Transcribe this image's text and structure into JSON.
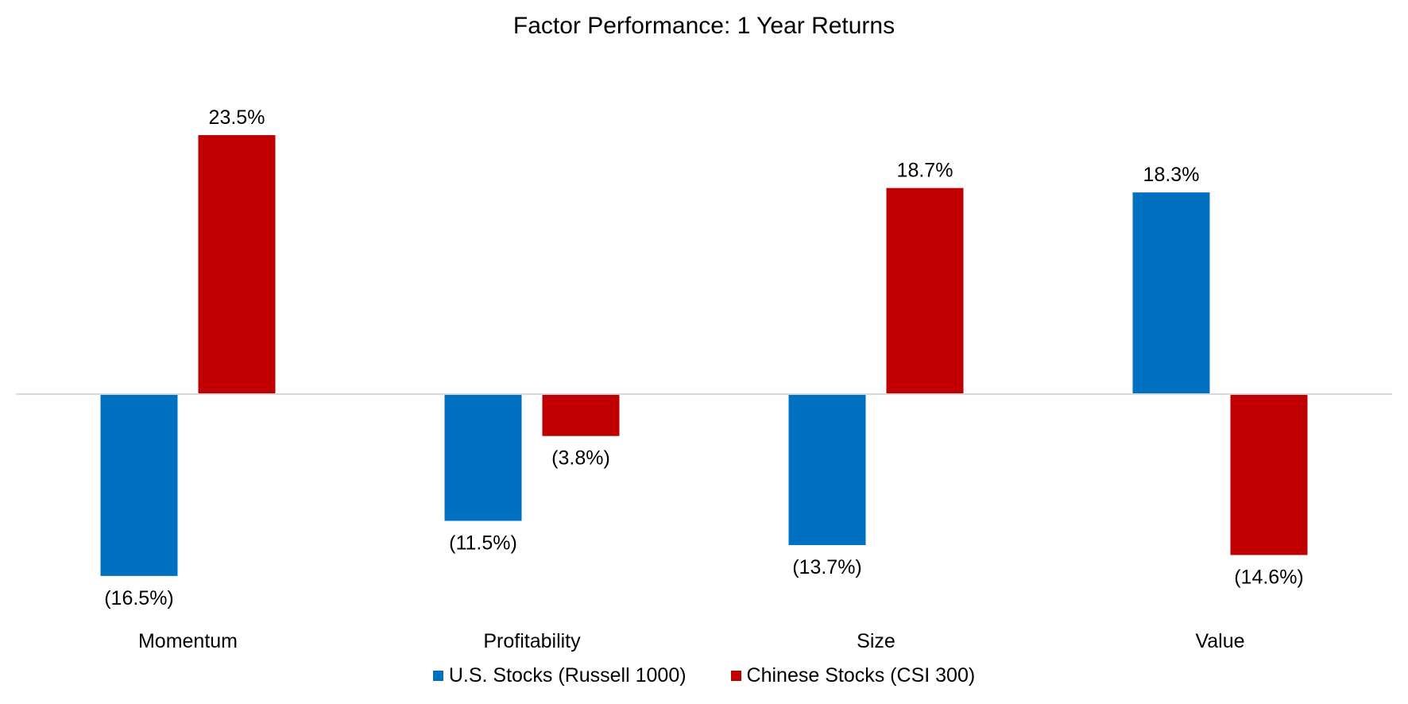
{
  "chart_data": {
    "type": "bar",
    "title": "Factor Performance: 1 Year Returns",
    "categories": [
      "Momentum",
      "Profitability",
      "Size",
      "Value"
    ],
    "series": [
      {
        "name": "U.S. Stocks (Russell 1000)",
        "color": "#0070C0",
        "values": [
          -16.5,
          -11.5,
          -13.7,
          18.3
        ],
        "labels": [
          "(16.5%)",
          "(11.5%)",
          "(13.7%)",
          "18.3%"
        ]
      },
      {
        "name": "Chinese Stocks (CSI 300)",
        "color": "#C00000",
        "values": [
          23.5,
          -3.8,
          18.7,
          -14.6
        ],
        "labels": [
          "23.5%",
          "(3.8%)",
          "18.7%",
          "(14.6%)"
        ]
      }
    ],
    "ylim": [
      -20,
      25
    ],
    "grid": false,
    "legend_position": "bottom",
    "axis_color": "#D9D9D9"
  }
}
